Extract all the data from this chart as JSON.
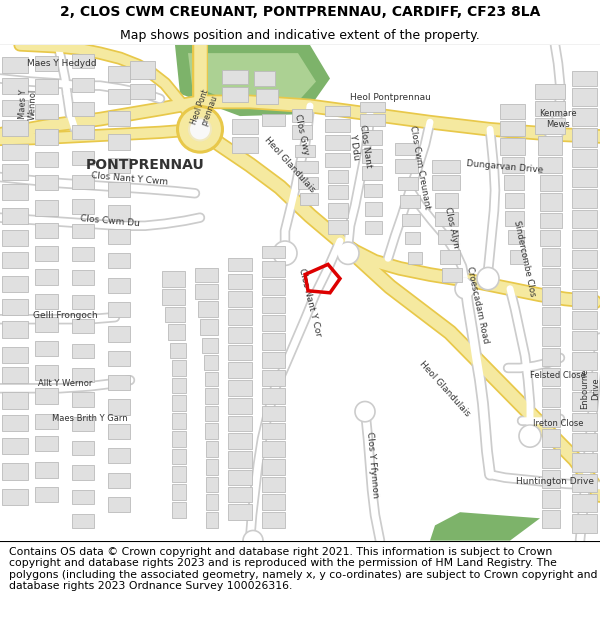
{
  "title_line1": "2, CLOS CWM CREUNANT, PONTPRENNAU, CARDIFF, CF23 8LA",
  "title_line2": "Map shows position and indicative extent of the property.",
  "footer_text": "Contains OS data © Crown copyright and database right 2021. This information is subject to Crown copyright and database rights 2023 and is reproduced with the permission of HM Land Registry. The polygons (including the associated geometry, namely x, y co-ordinates) are subject to Crown copyright and database rights 2023 Ordnance Survey 100026316.",
  "title_fontsize": 10,
  "subtitle_fontsize": 9,
  "footer_fontsize": 7.8,
  "map_bg": "#f8f8f8",
  "road_yellow": "#f5e9a0",
  "road_yellow_outline": "#e8c84a",
  "road_white": "#ffffff",
  "road_white_outline": "#cccccc",
  "bld_fill": "#e0e0e0",
  "bld_edge": "#bbbbbb",
  "green_dark": "#7db36a",
  "green_light": "#acd193",
  "red_poly": "#dd0000",
  "lbl_color": "#333333",
  "title_bg": "#ffffff",
  "footer_bg": "#ffffff"
}
